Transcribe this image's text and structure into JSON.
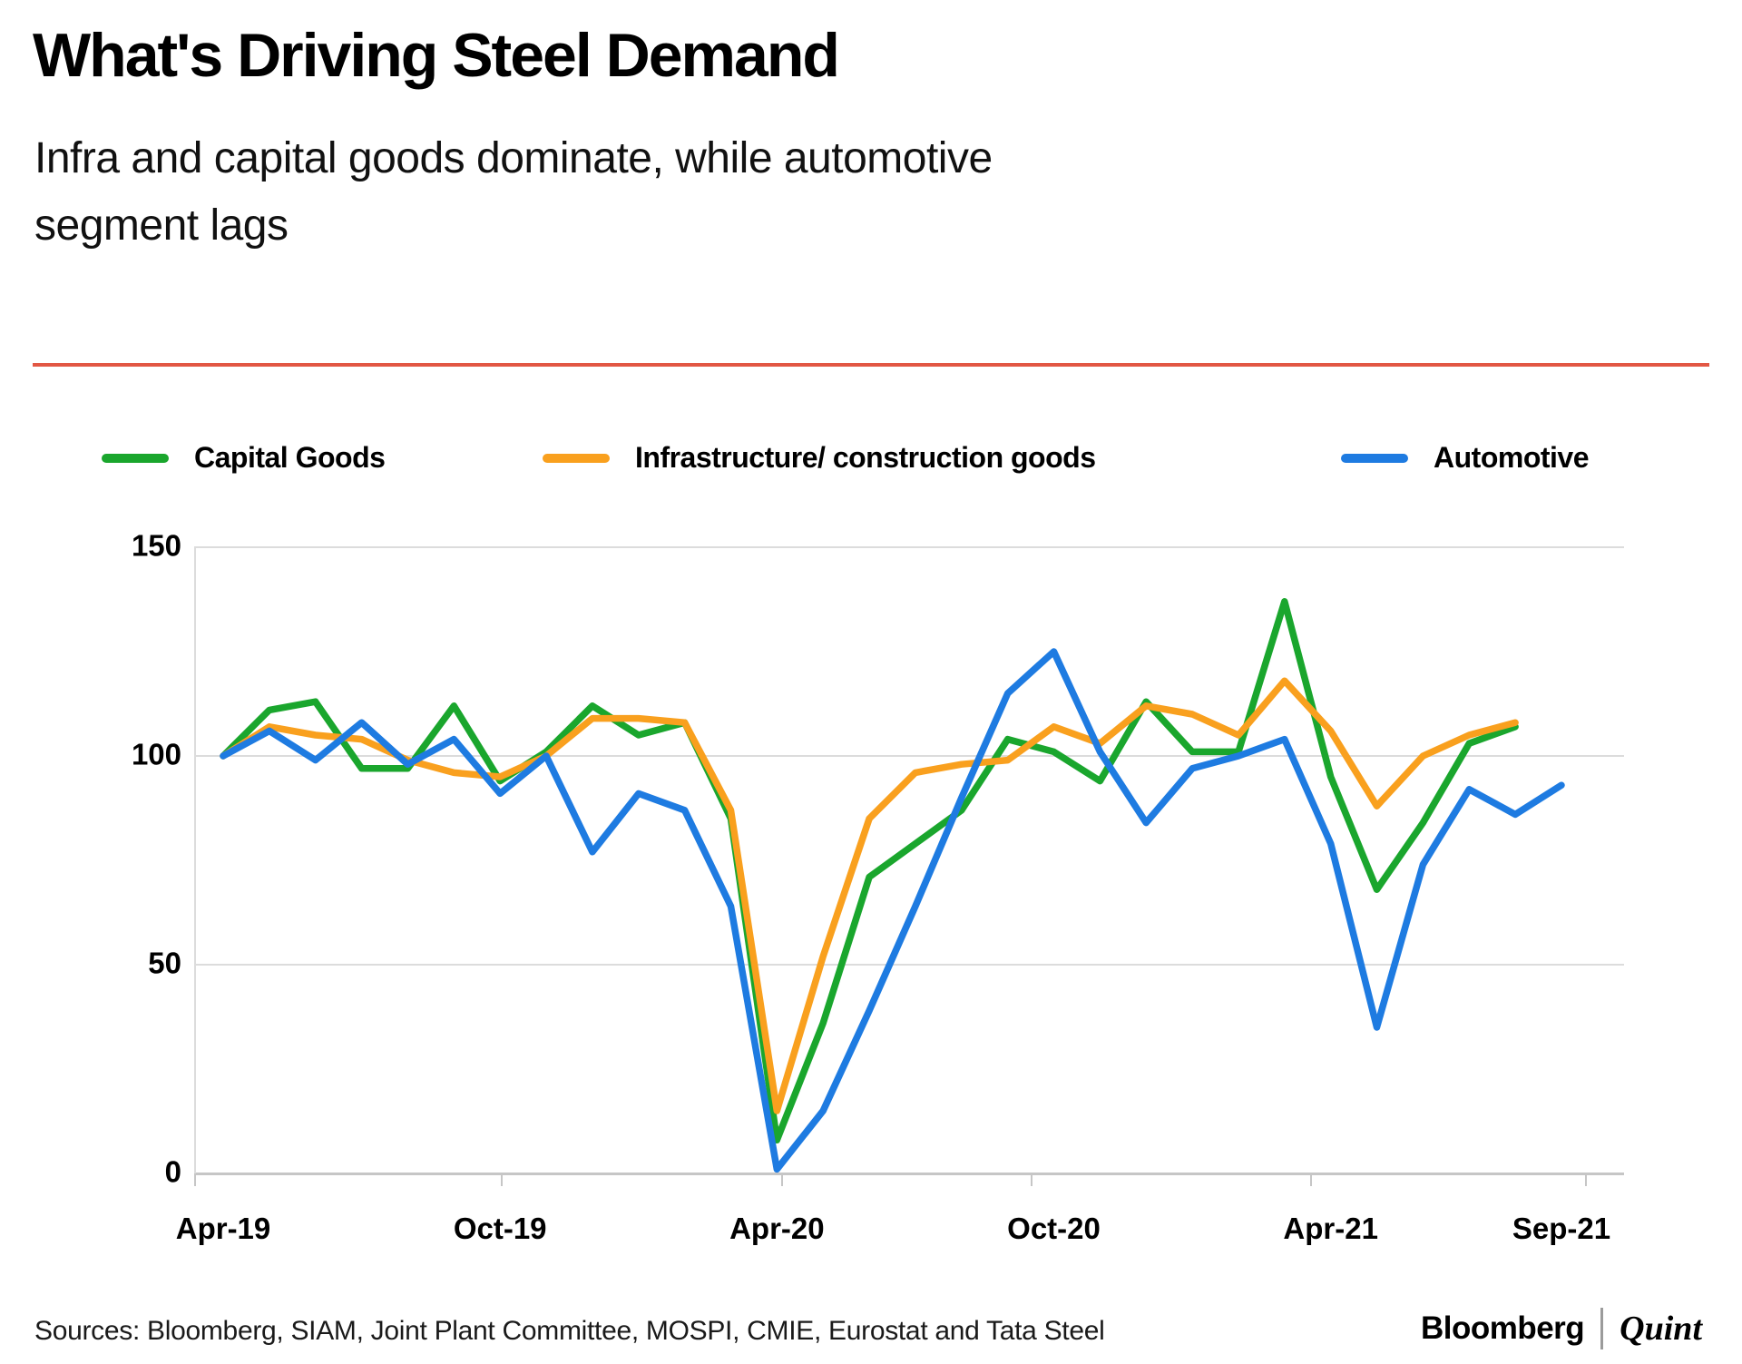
{
  "title": "What's Driving Steel Demand",
  "subtitle_line1": "Infra and capital goods dominate, while automotive",
  "subtitle_line2": "segment lags",
  "source_line": "Sources: Bloomberg, SIAM, Joint Plant Committee, MOSPI, CMIE, Eurostat and Tata Steel",
  "branding": {
    "bloomberg": "Bloomberg",
    "quint": "Quint"
  },
  "colors": {
    "divider_red": "#E25744",
    "capital_goods_green": "#1AA62D",
    "infrastructure_orange": "#F9A01E",
    "automotive_blue": "#1E7BE1",
    "gridline_gray": "#DCDCDC",
    "axis_gray": "#C6C6C6"
  },
  "chart_data": {
    "type": "line",
    "title": "",
    "xlabel": "",
    "ylabel": "",
    "ylim": [
      0,
      150
    ],
    "yticks": [
      0,
      50,
      100,
      150
    ],
    "grid": "horizontal",
    "legend_position": "top",
    "x": [
      "Apr-19",
      "May-19",
      "Jun-19",
      "Jul-19",
      "Aug-19",
      "Sep-19",
      "Oct-19",
      "Nov-19",
      "Dec-19",
      "Jan-20",
      "Feb-20",
      "Mar-20",
      "Apr-20",
      "May-20",
      "Jun-20",
      "Jul-20",
      "Aug-20",
      "Sep-20",
      "Oct-20",
      "Nov-20",
      "Dec-20",
      "Jan-21",
      "Feb-21",
      "Mar-21",
      "Apr-21",
      "May-21",
      "Jun-21",
      "Jul-21",
      "Aug-21",
      "Sep-21"
    ],
    "x_tick_labels": [
      {
        "label": "Apr-19",
        "month_index": 0
      },
      {
        "label": "Oct-19",
        "month_index": 6
      },
      {
        "label": "Apr-20",
        "month_index": 12
      },
      {
        "label": "Oct-20",
        "month_index": 18
      },
      {
        "label": "Apr-21",
        "month_index": 24
      },
      {
        "label": "Sep-21",
        "month_index": 29
      }
    ],
    "series": [
      {
        "name": "Capital Goods",
        "color": "#1AA62D",
        "values": [
          100,
          111,
          113,
          97,
          97,
          112,
          94,
          101,
          112,
          105,
          108,
          85,
          8,
          36,
          71,
          79,
          87,
          104,
          101,
          94,
          113,
          101,
          101,
          137,
          95,
          68,
          84,
          103,
          107,
          null
        ]
      },
      {
        "name": "Infrastructure/ construction goods",
        "color": "#F9A01E",
        "values": [
          100,
          107,
          105,
          104,
          99,
          96,
          95,
          100,
          109,
          109,
          108,
          87,
          15,
          52,
          85,
          96,
          98,
          99,
          107,
          103,
          112,
          110,
          105,
          118,
          106,
          88,
          100,
          105,
          108,
          null
        ]
      },
      {
        "name": "Automotive",
        "color": "#1E7BE1",
        "values": [
          100,
          106,
          99,
          108,
          98,
          104,
          91,
          100,
          77,
          91,
          87,
          64,
          1,
          15,
          39,
          64,
          90,
          115,
          125,
          101,
          84,
          97,
          100,
          104,
          79,
          35,
          74,
          92,
          86,
          93
        ]
      }
    ]
  }
}
